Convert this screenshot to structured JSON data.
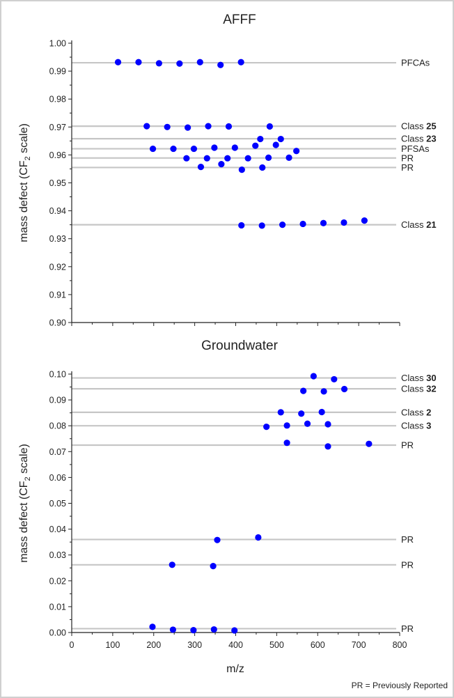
{
  "footnote": "PR = Previously Reported",
  "chart_data": [
    {
      "type": "scatter",
      "title": "AFFF",
      "ylabel": "mass defect (CF₂ scale)",
      "xlabel": "",
      "xlim": [
        0,
        800
      ],
      "ylim": [
        0.9,
        1.0
      ],
      "yticks": [
        "0.90",
        "0.91",
        "0.92",
        "0.93",
        "0.94",
        "0.95",
        "0.96",
        "0.97",
        "0.98",
        "0.99",
        "1.00"
      ],
      "grid": false,
      "marker_color": "#0000ff",
      "line_color": "#c6c6c6",
      "reference_lines": [
        {
          "y": 0.993,
          "label": "PFCAs",
          "bold": ""
        },
        {
          "y": 0.9703,
          "label": "Class ",
          "bold": "25"
        },
        {
          "y": 0.9658,
          "label": "Class ",
          "bold": "23"
        },
        {
          "y": 0.9622,
          "label": "PFSAs",
          "bold": ""
        },
        {
          "y": 0.9589,
          "label": "PR",
          "bold": ""
        },
        {
          "y": 0.9555,
          "label": "PR",
          "bold": ""
        },
        {
          "y": 0.935,
          "label": "Class ",
          "bold": "21"
        }
      ],
      "points": [
        [
          113,
          0.9932
        ],
        [
          163,
          0.9932
        ],
        [
          213,
          0.9928
        ],
        [
          263,
          0.9927
        ],
        [
          313,
          0.9932
        ],
        [
          363,
          0.9922
        ],
        [
          413,
          0.9932
        ],
        [
          183,
          0.9703
        ],
        [
          233,
          0.97
        ],
        [
          283,
          0.9698
        ],
        [
          333,
          0.9703
        ],
        [
          383,
          0.9702
        ],
        [
          483,
          0.9702
        ],
        [
          460,
          0.9657
        ],
        [
          510,
          0.9657
        ],
        [
          198,
          0.9622
        ],
        [
          248,
          0.9622
        ],
        [
          298,
          0.9622
        ],
        [
          348,
          0.9626
        ],
        [
          398,
          0.9626
        ],
        [
          448,
          0.9633
        ],
        [
          498,
          0.9636
        ],
        [
          548,
          0.9614
        ],
        [
          280,
          0.9588
        ],
        [
          330,
          0.9588
        ],
        [
          380,
          0.9588
        ],
        [
          430,
          0.9588
        ],
        [
          480,
          0.959
        ],
        [
          530,
          0.959
        ],
        [
          315,
          0.9557
        ],
        [
          365,
          0.9567
        ],
        [
          415,
          0.9547
        ],
        [
          465,
          0.9555
        ],
        [
          414,
          0.9348
        ],
        [
          464,
          0.9347
        ],
        [
          514,
          0.935
        ],
        [
          564,
          0.9353
        ],
        [
          614,
          0.9356
        ],
        [
          664,
          0.9358
        ],
        [
          714,
          0.9365
        ]
      ]
    },
    {
      "type": "scatter",
      "title": "Groundwater",
      "ylabel": "mass defect (CF₂ scale)",
      "xlabel": "m/z",
      "xlim": [
        0,
        800
      ],
      "ylim": [
        0.0,
        0.1
      ],
      "xticks": [
        "0",
        "100",
        "200",
        "300",
        "400",
        "500",
        "600",
        "700",
        "800"
      ],
      "yticks": [
        "0.00",
        "0.01",
        "0.02",
        "0.03",
        "0.04",
        "0.05",
        "0.06",
        "0.07",
        "0.08",
        "0.09",
        "0.10"
      ],
      "grid": false,
      "marker_color": "#0000ff",
      "line_color": "#c6c6c6",
      "reference_lines": [
        {
          "y": 0.0985,
          "label": "Class ",
          "bold": "30"
        },
        {
          "y": 0.0943,
          "label": "Class ",
          "bold": "32"
        },
        {
          "y": 0.0852,
          "label": "Class ",
          "bold": "2"
        },
        {
          "y": 0.08,
          "label": "Class ",
          "bold": "3"
        },
        {
          "y": 0.0725,
          "label": "PR",
          "bold": ""
        },
        {
          "y": 0.036,
          "label": "PR",
          "bold": ""
        },
        {
          "y": 0.0262,
          "label": "PR",
          "bold": ""
        },
        {
          "y": 0.0015,
          "label": "PR",
          "bold": ""
        }
      ],
      "points": [
        [
          590,
          0.0992
        ],
        [
          640,
          0.098
        ],
        [
          565,
          0.0935
        ],
        [
          615,
          0.0933
        ],
        [
          665,
          0.0942
        ],
        [
          510,
          0.0852
        ],
        [
          560,
          0.0847
        ],
        [
          610,
          0.0853
        ],
        [
          475,
          0.0796
        ],
        [
          525,
          0.0801
        ],
        [
          575,
          0.0808
        ],
        [
          625,
          0.0806
        ],
        [
          525,
          0.0734
        ],
        [
          625,
          0.072
        ],
        [
          725,
          0.073
        ],
        [
          355,
          0.0358
        ],
        [
          455,
          0.0368
        ],
        [
          245,
          0.0262
        ],
        [
          345,
          0.0257
        ],
        [
          197,
          0.0022
        ],
        [
          247,
          0.0011
        ],
        [
          297,
          0.0009
        ],
        [
          347,
          0.0012
        ],
        [
          397,
          0.0008
        ]
      ]
    }
  ]
}
